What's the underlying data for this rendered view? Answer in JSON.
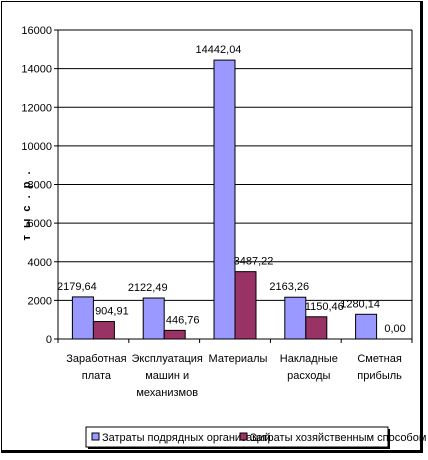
{
  "chart_data": {
    "type": "bar",
    "ylabel": "т ы с . р .",
    "ylim": [
      0,
      16000
    ],
    "yticks": [
      0,
      2000,
      4000,
      6000,
      8000,
      10000,
      12000,
      14000,
      16000
    ],
    "grid": true,
    "legend_position": "bottom",
    "categories": [
      [
        "Заработная",
        "плата"
      ],
      [
        "Эксплуатация",
        "машин и",
        "механизмов"
      ],
      [
        "Материалы"
      ],
      [
        "Накладные",
        "расходы"
      ],
      [
        "Сметная",
        "прибыль"
      ]
    ],
    "series": [
      {
        "name": "Затраты подрядных организаций",
        "color": "#9999ff",
        "values": [
          2179.64,
          2122.49,
          14442.04,
          2163.26,
          1280.14
        ],
        "labels": [
          "2179,64",
          "2122,49",
          "14442,04",
          "2163,26",
          "1280,14"
        ]
      },
      {
        "name": "Затраты хозяйственным способом",
        "color": "#993366",
        "values": [
          904.91,
          446.76,
          3487.22,
          1150.46,
          0.0
        ],
        "labels": [
          "904,91",
          "446,76",
          "3487,22",
          "1150,46",
          "0,00"
        ]
      }
    ]
  }
}
